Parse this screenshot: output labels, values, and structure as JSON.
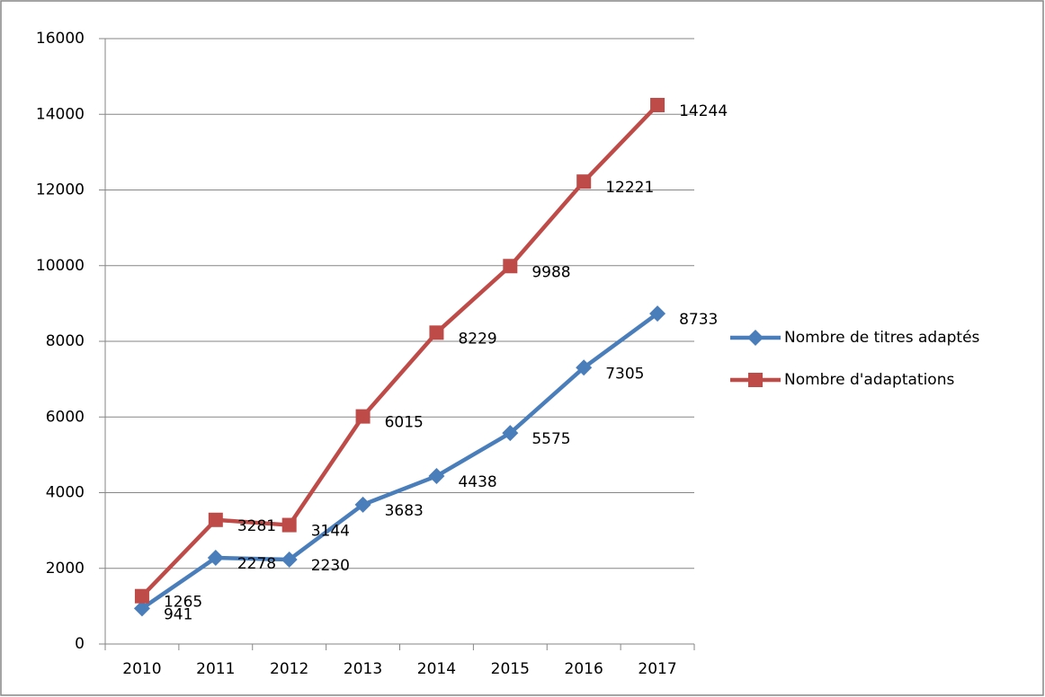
{
  "chart_data": {
    "type": "line",
    "categories": [
      "2010",
      "2011",
      "2012",
      "2013",
      "2014",
      "2015",
      "2016",
      "2017"
    ],
    "series": [
      {
        "name": "Nombre de titres adaptés",
        "color": "#4a7ebb",
        "marker": "diamond",
        "values": [
          941,
          2278,
          2230,
          3683,
          4438,
          5575,
          7305,
          8733
        ]
      },
      {
        "name": "Nombre d'adaptations",
        "color": "#be4b48",
        "marker": "square",
        "values": [
          1265,
          3281,
          3144,
          6015,
          8229,
          9988,
          12221,
          14244
        ]
      }
    ],
    "ylim": [
      0,
      16000
    ],
    "yticks": [
      0,
      2000,
      4000,
      6000,
      8000,
      10000,
      12000,
      14000,
      16000
    ],
    "grid": true,
    "legend": "right"
  }
}
